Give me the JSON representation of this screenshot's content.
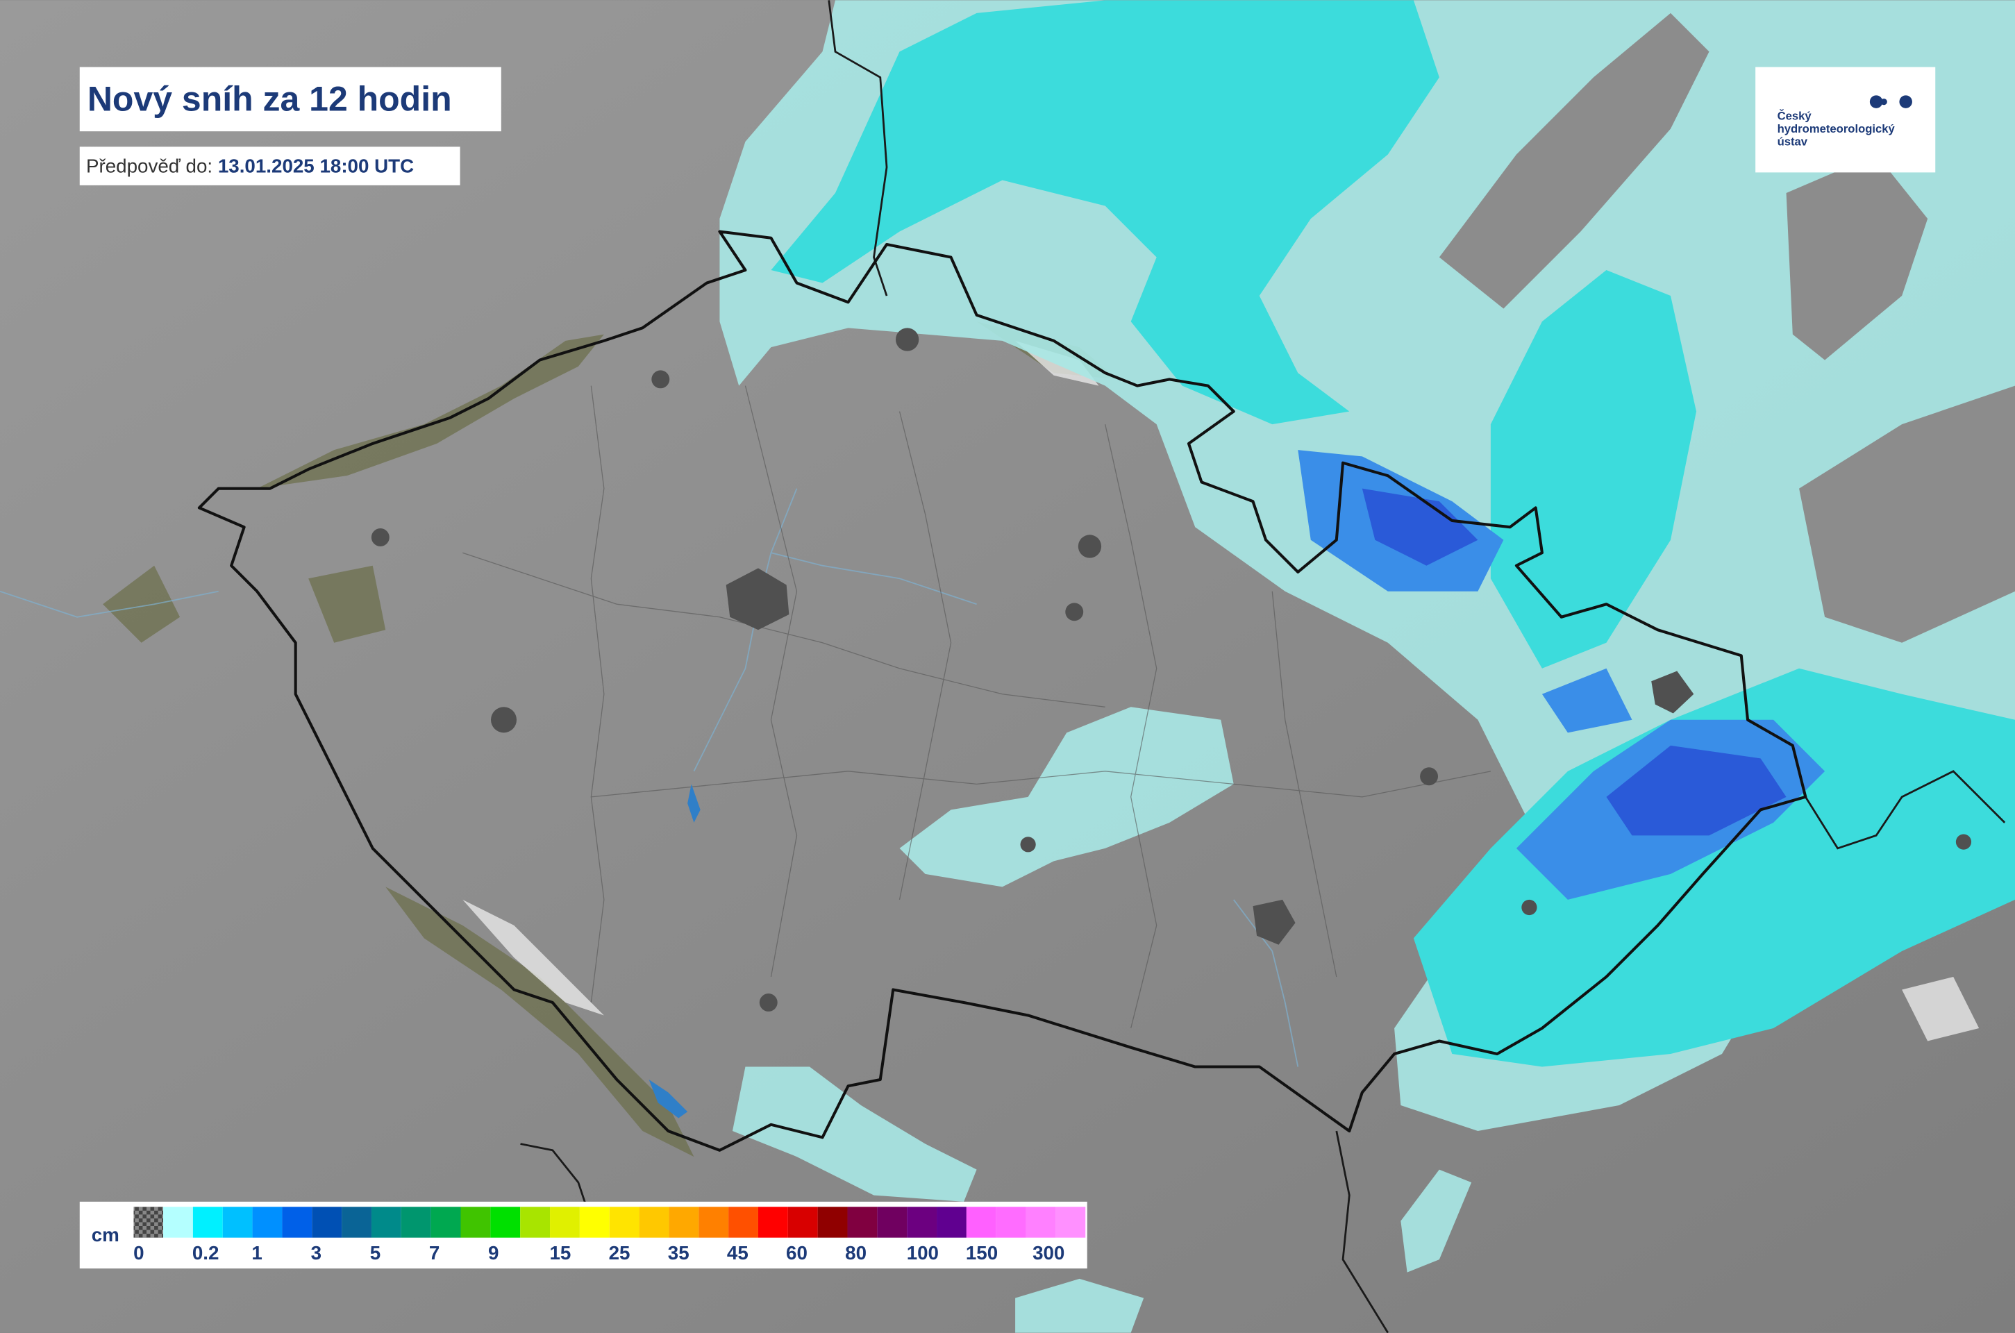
{
  "header": {
    "title": "Nový sníh za 12 hodin",
    "forecast_label": "Předpověď do:",
    "forecast_time": "13.01.2025 18:00 UTC"
  },
  "logo": {
    "lines": [
      "Český",
      "hydrometeorologický",
      "ústav"
    ]
  },
  "legend": {
    "unit": "cm",
    "labels": [
      "0",
      "0.2",
      "1",
      "3",
      "5",
      "7",
      "9",
      "15",
      "25",
      "35",
      "45",
      "60",
      "80",
      "100",
      "150",
      "300"
    ],
    "colors": [
      "#b4ffff",
      "#00f0ff",
      "#00c0ff",
      "#0090ff",
      "#0060e8",
      "#0050b4",
      "#0a6496",
      "#008a8a",
      "#00966e",
      "#00a850",
      "#40c400",
      "#00e000",
      "#a8e400",
      "#e0f000",
      "#ffff00",
      "#ffe400",
      "#ffc800",
      "#ffa800",
      "#ff8000",
      "#ff5000",
      "#ff0000",
      "#d80000",
      "#900000",
      "#800040",
      "#700060",
      "#6c0080",
      "#600090",
      "#ff60ff",
      "#ff6cff",
      "#ff80ff",
      "#ff90ff"
    ]
  }
}
